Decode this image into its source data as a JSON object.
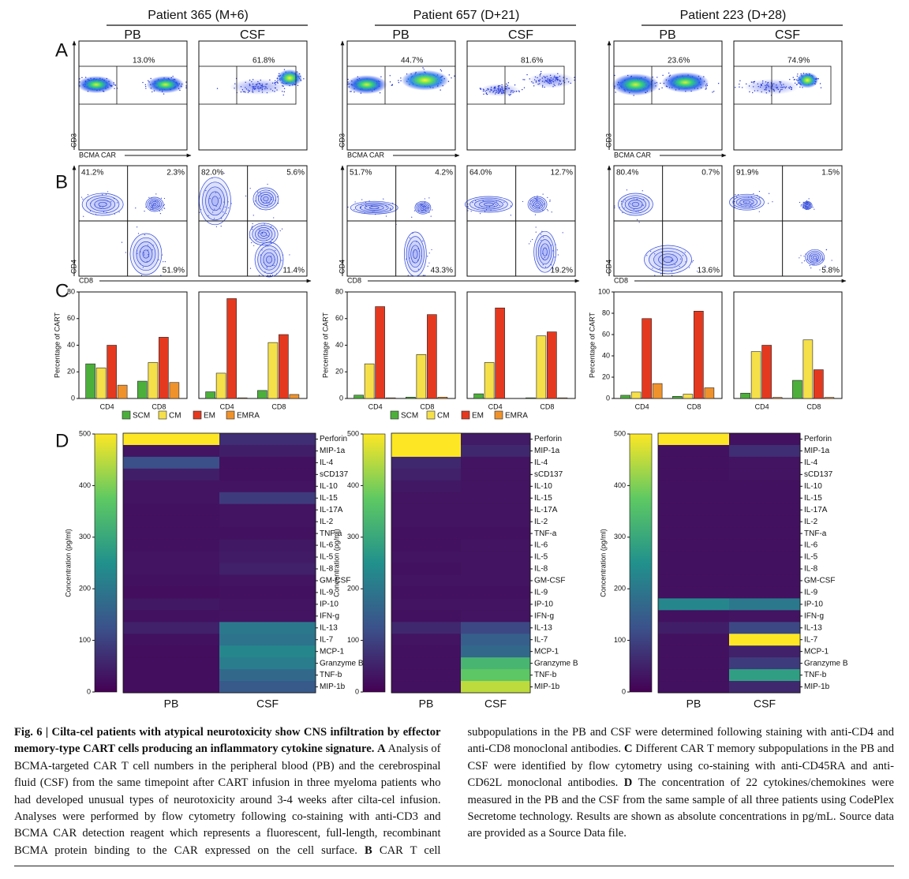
{
  "patients": [
    {
      "title": "Patient 365 (M+6)"
    },
    {
      "title": "Patient 657 (D+21)"
    },
    {
      "title": "Patient 223 (D+28)"
    }
  ],
  "panel_letters": [
    "A",
    "B",
    "C",
    "D"
  ],
  "sample_labels": [
    "PB",
    "CSF"
  ],
  "panel_a": {
    "x_label": "BCMA CAR",
    "y_label": "CD3",
    "percentages": [
      [
        "13.0%",
        "61.8%"
      ],
      [
        "44.7%",
        "81.6%"
      ],
      [
        "23.6%",
        "74.9%"
      ]
    ]
  },
  "panel_b": {
    "x_label": "CD8",
    "y_label": "CD4",
    "quadrants": [
      [
        [
          "41.2%",
          "2.3%",
          "51.9%"
        ],
        [
          "82.0%",
          "5.6%",
          "11.4%"
        ]
      ],
      [
        [
          "51.7%",
          "4.2%",
          "43.3%"
        ],
        [
          "64.0%",
          "12.7%",
          "19.2%"
        ]
      ],
      [
        [
          "80.4%",
          "0.7%",
          "13.6%"
        ],
        [
          "91.9%",
          "1.5%",
          "5.8%"
        ]
      ]
    ]
  },
  "panel_c": {
    "y_label": "Percentage of CART",
    "categories": [
      "CD4",
      "CD8"
    ],
    "series": [
      {
        "name": "SCM",
        "color": "#4caf3c"
      },
      {
        "name": "CM",
        "color": "#f6e04a"
      },
      {
        "name": "EM",
        "color": "#e5391f"
      },
      {
        "name": "EMRA",
        "color": "#ef922c"
      }
    ],
    "show_legend": [
      true,
      true,
      false
    ],
    "plots": [
      {
        "ylim": [
          0,
          80
        ],
        "yticks": [
          0,
          20,
          40,
          60,
          80
        ],
        "samples": [
          [
            [
              26,
              13
            ],
            [
              23,
              27
            ],
            [
              40,
              46
            ],
            [
              10,
              12
            ]
          ],
          [
            [
              5,
              6
            ],
            [
              19,
              42
            ],
            [
              75,
              48
            ],
            [
              0.5,
              3
            ]
          ]
        ]
      },
      {
        "ylim": [
          0,
          80
        ],
        "yticks": [
          0,
          20,
          40,
          60,
          80
        ],
        "samples": [
          [
            [
              2.5,
              1
            ],
            [
              26,
              33
            ],
            [
              69,
              63
            ],
            [
              0.5,
              1
            ]
          ],
          [
            [
              3.5,
              0.5
            ],
            [
              27,
              47
            ],
            [
              68,
              50
            ],
            [
              0,
              0.5
            ]
          ]
        ]
      },
      {
        "ylim": [
          0,
          100
        ],
        "yticks": [
          0,
          20,
          40,
          60,
          80,
          100
        ],
        "samples": [
          [
            [
              3,
              2
            ],
            [
              6,
              4
            ],
            [
              75,
              82
            ],
            [
              14,
              10
            ]
          ],
          [
            [
              5,
              17
            ],
            [
              44,
              55
            ],
            [
              50,
              27
            ],
            [
              1,
              1
            ]
          ]
        ]
      }
    ]
  },
  "panel_d": {
    "colorbar_label": "Concentration (pg/ml)",
    "clim": [
      0,
      500
    ],
    "cticks": [
      0,
      100,
      200,
      300,
      400,
      500
    ],
    "cytokines": [
      "Perforin",
      "MIP-1a",
      "IL-4",
      "sCD137",
      "IL-10",
      "IL-15",
      "IL-17A",
      "IL-2",
      "TNF-a",
      "IL-6",
      "IL-5",
      "IL-8",
      "GM-CSF",
      "IL-9",
      "IP-10",
      "IFN-g",
      "IL-13",
      "IL-7",
      "MCP-1",
      "Granzyme B",
      "TNF-b",
      "MIP-1b"
    ],
    "values": [
      [
        [
          500,
          30,
          120,
          45,
          30,
          30,
          25,
          25,
          25,
          25,
          30,
          30,
          25,
          20,
          35,
          25,
          50,
          25,
          20,
          20,
          20,
          20
        ],
        [
          70,
          45,
          25,
          25,
          30,
          90,
          30,
          30,
          25,
          35,
          40,
          50,
          30,
          25,
          30,
          30,
          200,
          190,
          230,
          210,
          170,
          140
        ]
      ],
      [
        [
          500,
          500,
          60,
          50,
          35,
          30,
          30,
          30,
          25,
          25,
          30,
          25,
          30,
          25,
          30,
          25,
          60,
          30,
          25,
          25,
          25,
          25
        ],
        [
          40,
          60,
          30,
          30,
          30,
          30,
          30,
          30,
          25,
          30,
          30,
          30,
          30,
          25,
          30,
          30,
          110,
          150,
          170,
          330,
          370,
          450
        ]
      ],
      [
        [
          500,
          25,
          25,
          25,
          25,
          25,
          25,
          25,
          25,
          25,
          25,
          25,
          25,
          25,
          230,
          25,
          45,
          25,
          25,
          25,
          25,
          25
        ],
        [
          25,
          70,
          30,
          30,
          25,
          25,
          25,
          25,
          25,
          25,
          25,
          25,
          25,
          25,
          200,
          30,
          110,
          500,
          50,
          90,
          280,
          60
        ]
      ]
    ]
  },
  "caption": {
    "label": "Fig. 6 |",
    "title": "Cilta-cel patients with atypical neurotoxicity show CNS infiltration by effector memory-type CART cells producing an inflammatory cytokine signature.",
    "panels": [
      {
        "letter": "A",
        "text": "Analysis of BCMA-targeted CAR T cell numbers in the peripheral blood (PB) and the cerebrospinal fluid (CSF) from the same timepoint after CART infusion in three myeloma patients who had developed unusual types of neurotoxicity around 3-4 weeks after cilta-cel infusion. Analyses were performed by flow cytometry following co-staining with anti-CD3 and BCMA CAR detection reagent which represents a fluorescent, full-length, recombinant BCMA protein binding to the CAR expressed on the cell surface."
      },
      {
        "letter": "B",
        "text": "CAR T cell subpopulations in the PB and CSF were determined following staining with anti-CD4 and anti-CD8 monoclonal antibodies."
      },
      {
        "letter": "C",
        "text": "Different CAR T memory subpopulations in the PB and CSF were identified by flow cytometry using co-staining with anti-CD45RA and anti-CD62L monoclonal antibodies."
      },
      {
        "letter": "D",
        "text": "The concentration of 22 cytokines/chemokines were measured in the PB and the CSF from the same sample of all three patients using CodePlex Secretome technology. Results are shown as absolute concentrations in pg/mL. Source data are provided as a Source Data file."
      }
    ]
  }
}
